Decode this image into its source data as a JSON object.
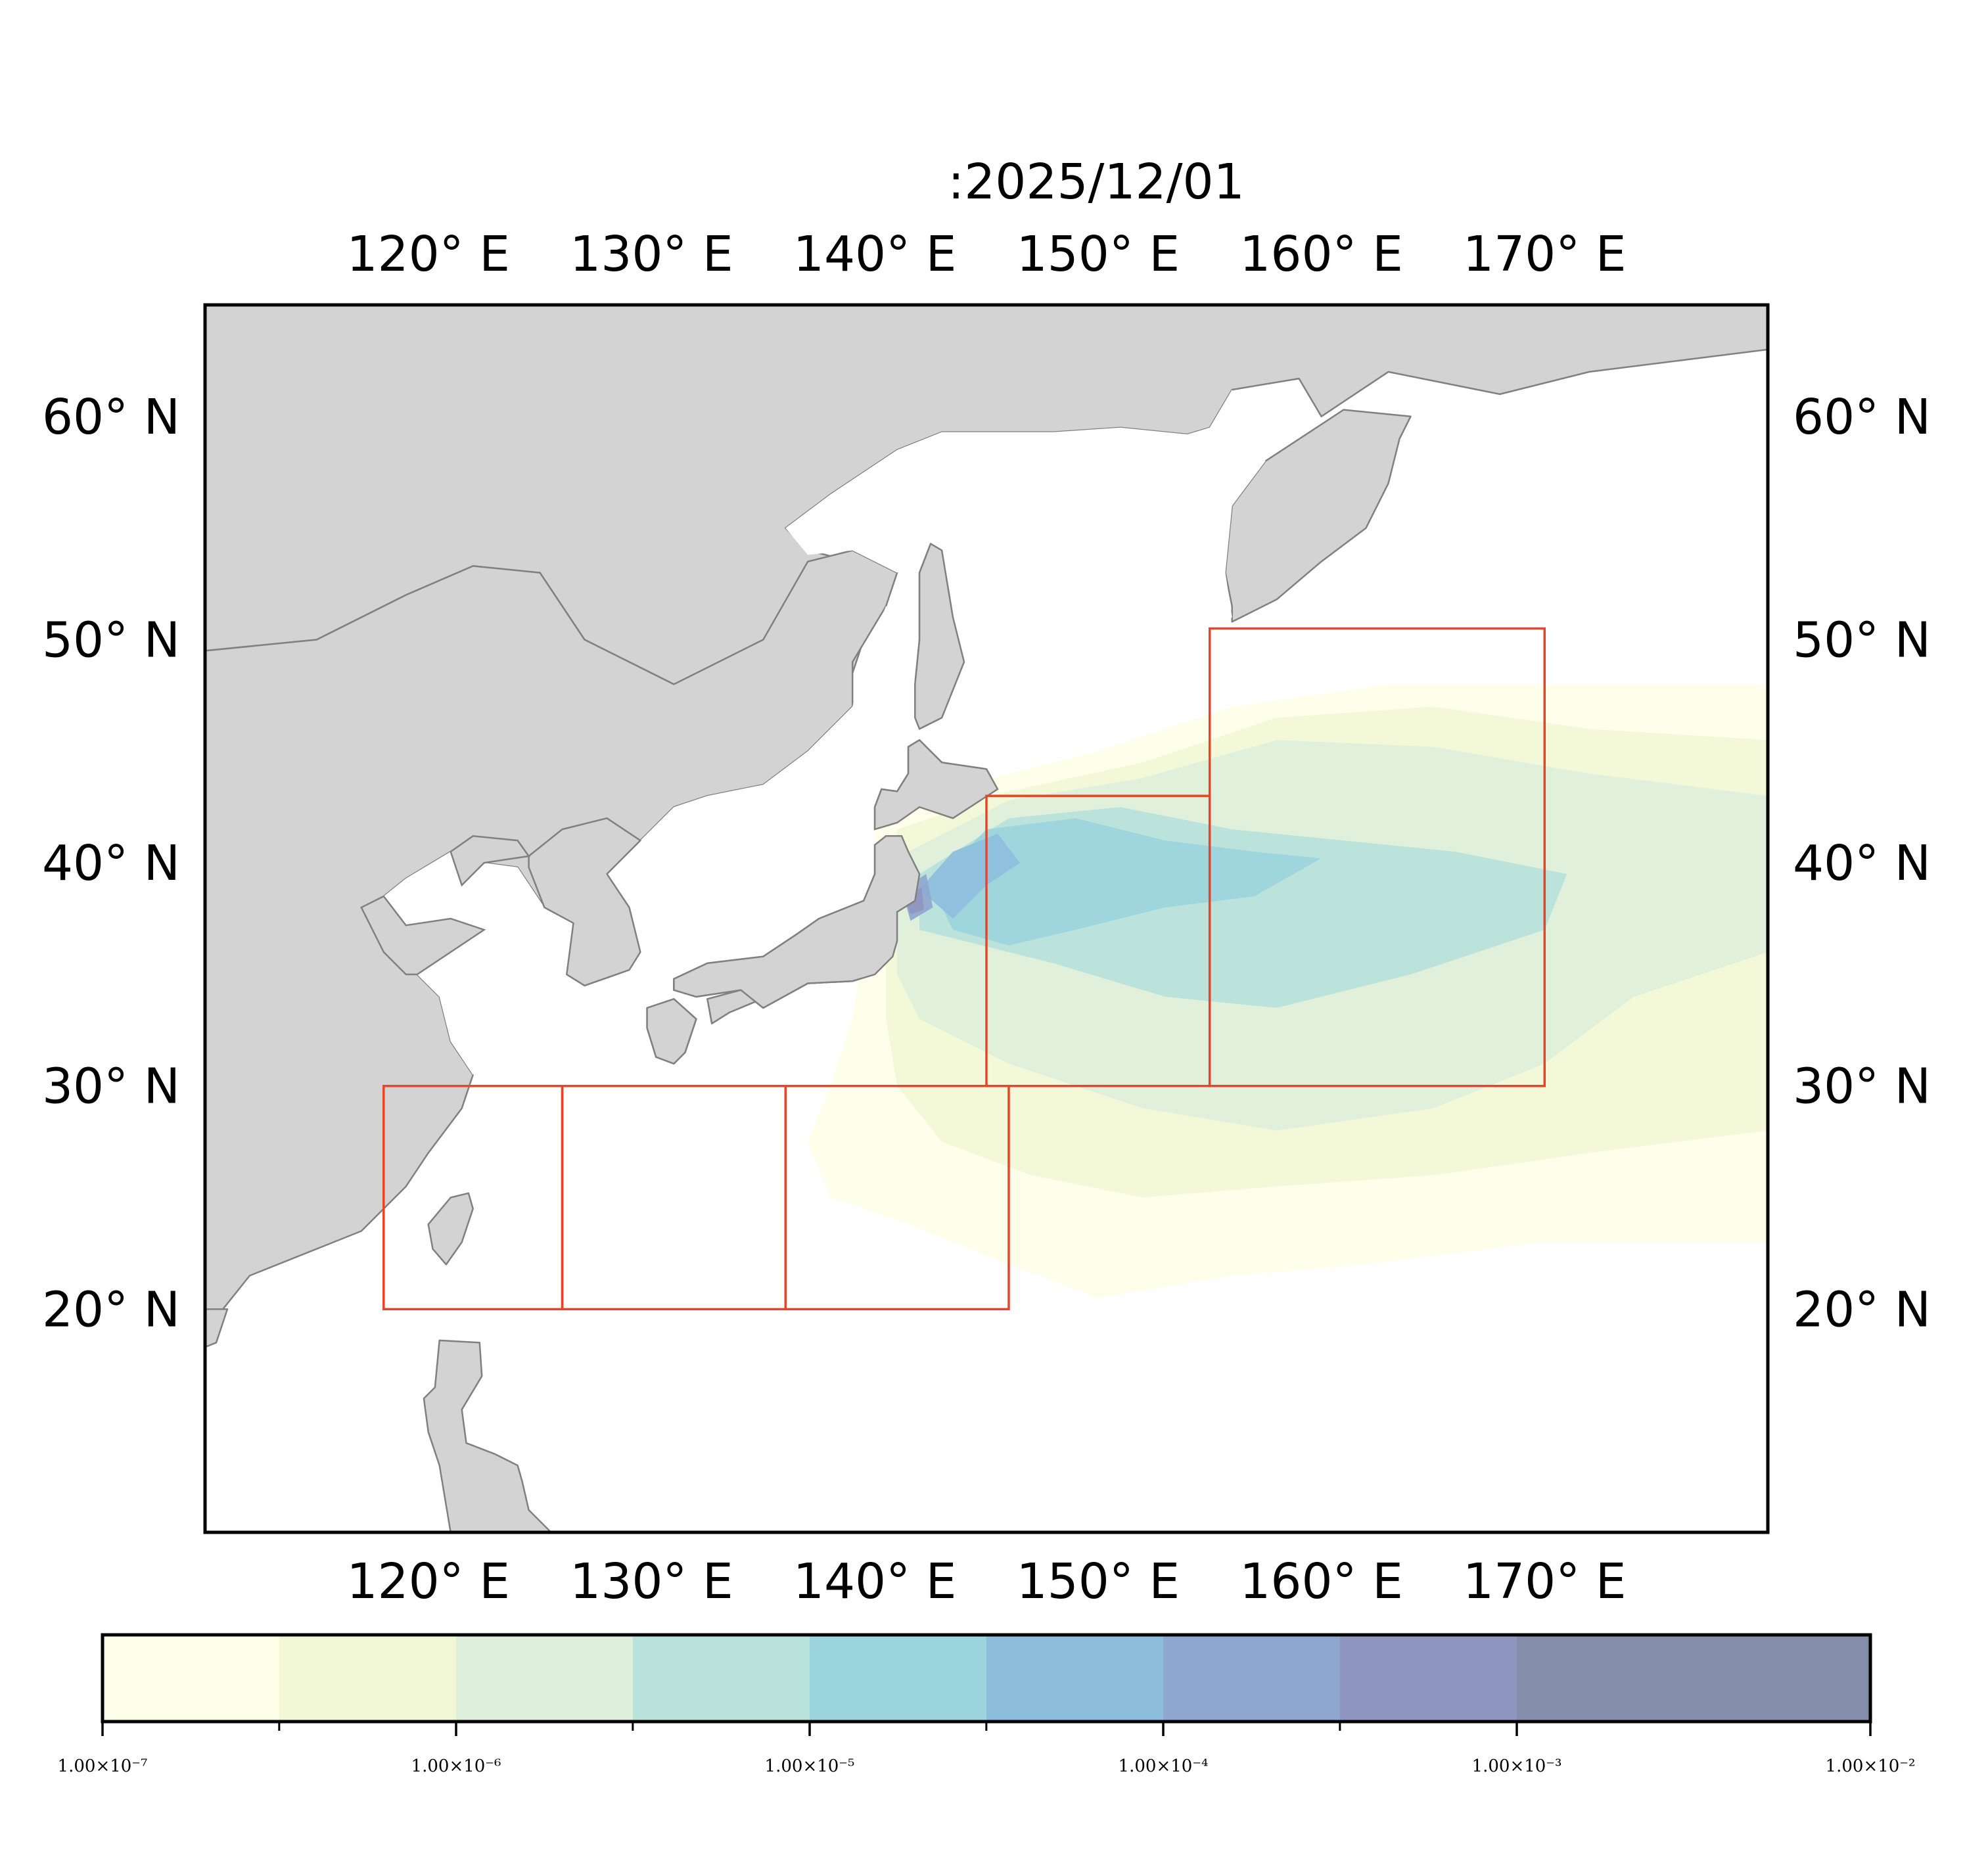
{
  "title": ":2025/12/01",
  "map": {
    "lon_range": [
      110,
      180
    ],
    "lat_range": [
      10,
      65
    ],
    "lon_ticks": [
      120,
      130,
      140,
      150,
      160,
      170
    ],
    "lat_ticks": [
      20,
      30,
      40,
      50,
      60
    ],
    "lon_tick_labels": [
      "120° E",
      "130° E",
      "140° E",
      "150° E",
      "160° E",
      "170° E"
    ],
    "lat_tick_labels": [
      "20° N",
      "30° N",
      "40° N",
      "50° N",
      "60° N"
    ],
    "land_color": "#d3d3d3",
    "coast_color": "#808080",
    "box_color": "#e8442a"
  },
  "regions": [
    {
      "lon": [
        118,
        126
      ],
      "lat": [
        20,
        30
      ]
    },
    {
      "lon": [
        126,
        136
      ],
      "lat": [
        20,
        30
      ]
    },
    {
      "lon": [
        136,
        146
      ],
      "lat": [
        20,
        30
      ]
    },
    {
      "lon": [
        145,
        155
      ],
      "lat": [
        30,
        43
      ]
    },
    {
      "lon": [
        155,
        170
      ],
      "lat": [
        30,
        50.5
      ]
    }
  ],
  "colorbar": {
    "scale": "log",
    "levels": [
      1e-07,
      3.16e-07,
      1e-06,
      3.16e-06,
      1e-05,
      3.16e-05,
      0.0001,
      0.000316,
      0.001,
      0.01
    ],
    "colors": [
      "#feffe9",
      "#f2f8d6",
      "#deefdb",
      "#b8e2db",
      "#9cd5de",
      "#8dbedc",
      "#8fa7cf",
      "#8f96c0",
      "#848da9"
    ],
    "tick_labels": [
      "1.00×10⁻⁷",
      "1.00×10⁻⁶",
      "1.00×10⁻⁵",
      "1.00×10⁻⁴",
      "1.00×10⁻³",
      "1.00×10⁻²"
    ]
  },
  "plume": [
    {
      "level": 0,
      "poly": [
        [
          140,
          42
        ],
        [
          144,
          43.5
        ],
        [
          150,
          45
        ],
        [
          156,
          47
        ],
        [
          163,
          48
        ],
        [
          170,
          48
        ],
        [
          180,
          48
        ],
        [
          180,
          23
        ],
        [
          170,
          23
        ],
        [
          162,
          22
        ],
        [
          156,
          21.5
        ],
        [
          150,
          20.5
        ],
        [
          146,
          22
        ],
        [
          141,
          24
        ],
        [
          138,
          25
        ],
        [
          137,
          27.5
        ],
        [
          138,
          30
        ],
        [
          139,
          33
        ],
        [
          139.5,
          36
        ],
        [
          140,
          39
        ]
      ]
    },
    {
      "level": 1,
      "poly": [
        [
          141,
          41.5
        ],
        [
          146,
          43.2
        ],
        [
          152,
          44.5
        ],
        [
          158,
          46.5
        ],
        [
          165,
          47
        ],
        [
          172,
          46
        ],
        [
          180,
          45.5
        ],
        [
          180,
          28
        ],
        [
          172,
          27
        ],
        [
          165,
          26
        ],
        [
          158,
          25.5
        ],
        [
          152,
          25
        ],
        [
          147,
          26
        ],
        [
          143,
          27.5
        ],
        [
          141,
          30
        ],
        [
          140.5,
          33
        ],
        [
          140.5,
          36.5
        ]
      ]
    },
    {
      "level": 2,
      "poly": [
        [
          141.5,
          40.5
        ],
        [
          146,
          42.8
        ],
        [
          152,
          43.8
        ],
        [
          158,
          45.5
        ],
        [
          165,
          45.2
        ],
        [
          172,
          44
        ],
        [
          180,
          43
        ],
        [
          180,
          36
        ],
        [
          174,
          34
        ],
        [
          170,
          31
        ],
        [
          165,
          29
        ],
        [
          158,
          28
        ],
        [
          152,
          29
        ],
        [
          146,
          31
        ],
        [
          142,
          33
        ],
        [
          141,
          35
        ],
        [
          141,
          37.5
        ]
      ]
    },
    {
      "level": 3,
      "poly": [
        [
          142,
          39.5
        ],
        [
          146,
          42
        ],
        [
          151,
          42.5
        ],
        [
          156,
          41.5
        ],
        [
          161,
          41
        ],
        [
          166,
          40.5
        ],
        [
          171,
          39.5
        ],
        [
          170,
          37
        ],
        [
          164,
          35
        ],
        [
          158,
          33.5
        ],
        [
          153,
          34
        ],
        [
          148,
          35.5
        ],
        [
          144,
          36.5
        ],
        [
          142,
          37
        ]
      ]
    },
    {
      "level": 4,
      "poly": [
        [
          142.5,
          39
        ],
        [
          145,
          41.5
        ],
        [
          149,
          42
        ],
        [
          153,
          41
        ],
        [
          157,
          40.5
        ],
        [
          160,
          40.2
        ],
        [
          157,
          38.5
        ],
        [
          153,
          38
        ],
        [
          149,
          37
        ],
        [
          146,
          36.3
        ],
        [
          143.5,
          37
        ]
      ]
    },
    {
      "level": 5,
      "poly": [
        [
          142,
          38.8
        ],
        [
          143.5,
          40.5
        ],
        [
          145.5,
          41.3
        ],
        [
          146.5,
          40
        ],
        [
          145,
          39
        ],
        [
          143.5,
          37.5
        ]
      ]
    },
    {
      "level": 6,
      "poly": [
        [
          141.2,
          38.8
        ],
        [
          142.3,
          39.5
        ],
        [
          142.6,
          38
        ],
        [
          141.6,
          37.4
        ]
      ]
    },
    {
      "level": 7,
      "poly": [
        [
          141.3,
          38.5
        ],
        [
          142.1,
          38.9
        ],
        [
          142.2,
          37.9
        ],
        [
          141.6,
          37.7
        ]
      ]
    }
  ]
}
